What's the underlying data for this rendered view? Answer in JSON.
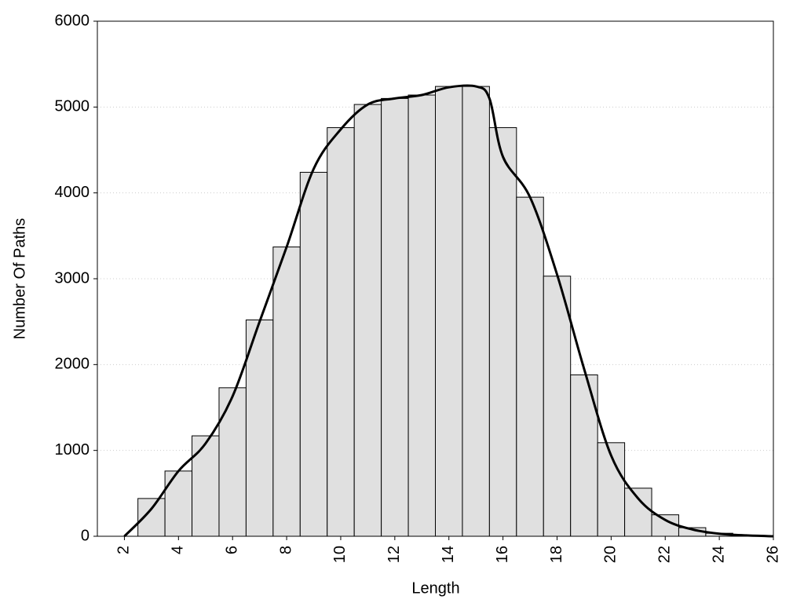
{
  "chart_data": {
    "type": "histogram",
    "x_label": "Length",
    "y_label": "Number Of Paths",
    "bins": [
      2.5,
      3.5,
      4.5,
      5.5,
      6.5,
      7.5,
      8.5,
      9.5,
      10.5,
      11.5,
      12.5,
      13.5,
      14.5,
      15.5,
      16.5,
      17.5,
      18.5,
      19.5,
      20.5,
      21.5,
      22.5,
      23.5,
      24.5,
      25.5
    ],
    "values": [
      440,
      760,
      1170,
      1730,
      2520,
      3370,
      4240,
      4760,
      5030,
      5100,
      5140,
      5240,
      5240,
      4760,
      3950,
      3030,
      1880,
      1090,
      560,
      250,
      100,
      35,
      10
    ],
    "color": "#e0e0e0",
    "edge_color": "#000000",
    "line": {
      "x": [
        2,
        3,
        4,
        5,
        6,
        7,
        8,
        9,
        10,
        11,
        12,
        13,
        14,
        15,
        15.5,
        16,
        17,
        18,
        19,
        20,
        21,
        22,
        23,
        24,
        25,
        26
      ],
      "values": [
        0,
        320,
        760,
        1080,
        1630,
        2500,
        3370,
        4280,
        4740,
        5030,
        5100,
        5140,
        5230,
        5240,
        5100,
        4420,
        3950,
        3050,
        1950,
        940,
        440,
        190,
        80,
        30,
        10,
        0
      ],
      "color": "#000000"
    },
    "xlim": [
      1,
      26
    ],
    "xticks": [
      2,
      4,
      6,
      8,
      10,
      12,
      14,
      16,
      18,
      20,
      22,
      24,
      26
    ],
    "ylim": [
      0,
      6000
    ],
    "yticks": [
      0,
      1000,
      2000,
      3000,
      4000,
      5000,
      6000
    ],
    "grid": true
  }
}
